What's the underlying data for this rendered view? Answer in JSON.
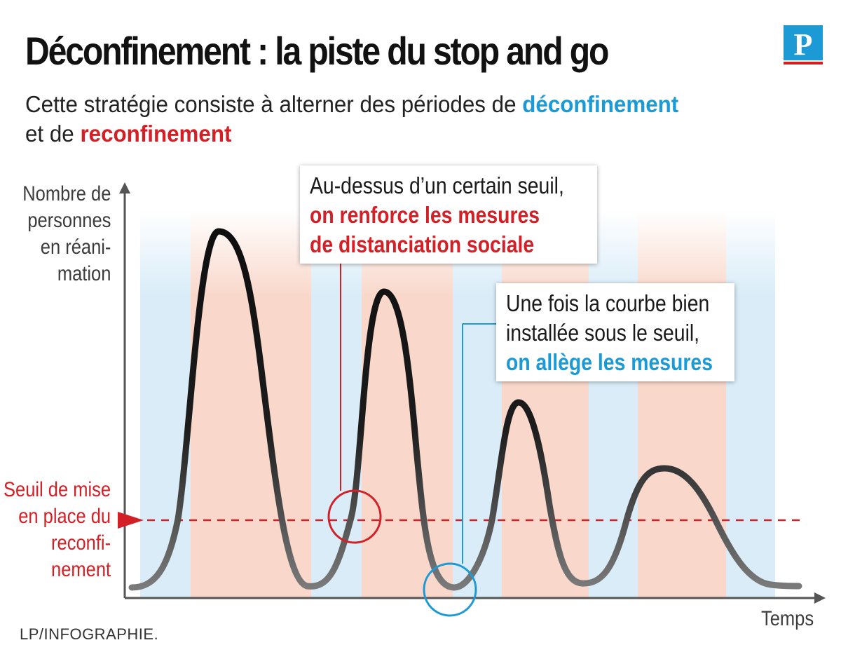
{
  "title": "Déconfinement : la piste du stop and go",
  "logo": {
    "letter": "P",
    "icon": "le-parisien-logo"
  },
  "subtitle": {
    "prefix": "Cette stratégie consiste à alterner des périodes de ",
    "highlight_blue": "déconfinement",
    "middle": " et de ",
    "highlight_red": "reconfinement"
  },
  "y_axis_label": [
    "Nombre de",
    "personnes",
    "en réani-",
    "mation"
  ],
  "x_axis_label": "Temps",
  "threshold_label": [
    "Seuil de mise",
    "en place du",
    "reconfi-",
    "nement"
  ],
  "callout_red": {
    "line1": "Au-dessus d’un certain seuil,",
    "line2": "on renforce les mesures",
    "line3": "de distanciation sociale"
  },
  "callout_blue": {
    "line1": "Une fois la courbe bien",
    "line2": "installée sous le seuil,",
    "line3": "on allège les mesures"
  },
  "credit": "LP/INFOGRAPHIE.",
  "colors": {
    "blue": "#1b9ad6",
    "red": "#d31f26",
    "band_blue": "#d9ecf8",
    "band_red": "#f9d8cb",
    "curve": "#111111"
  },
  "period_sequence": [
    "déconfinement",
    "reconfinement",
    "déconfinement",
    "reconfinement",
    "déconfinement",
    "reconfinement",
    "déconfinement",
    "reconfinement",
    "déconfinement"
  ]
}
